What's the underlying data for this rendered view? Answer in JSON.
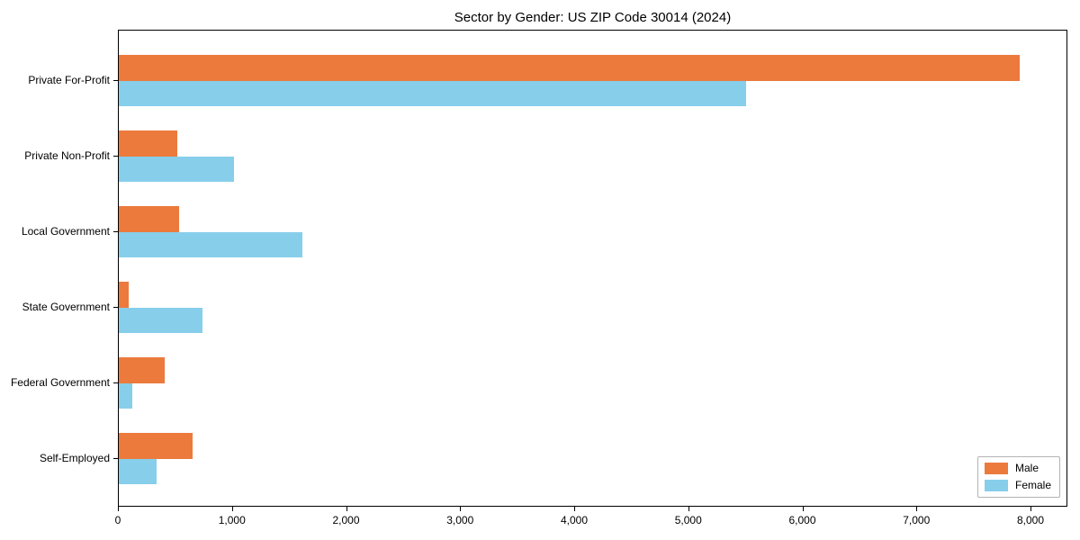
{
  "chart_data": {
    "type": "bar",
    "orientation": "horizontal",
    "title": "Sector by Gender: US ZIP Code 30014 (2024)",
    "categories": [
      "Private For-Profit",
      "Private Non-Profit",
      "Local Government",
      "State Government",
      "Federal Government",
      "Self-Employed"
    ],
    "series": [
      {
        "name": "Male",
        "color": "#EB7A3C",
        "values": [
          7900,
          510,
          530,
          90,
          400,
          650
        ]
      },
      {
        "name": "Female",
        "color": "#87CEEB",
        "values": [
          5500,
          1010,
          1610,
          730,
          120,
          330
        ]
      }
    ],
    "xlim": [
      0,
      8000
    ],
    "x_ticks": [
      0,
      1000,
      2000,
      3000,
      4000,
      5000,
      6000,
      7000,
      8000
    ],
    "x_tick_labels": [
      "0",
      "1,000",
      "2,000",
      "3,000",
      "4,000",
      "5,000",
      "6,000",
      "7,000",
      "8,000"
    ],
    "xlabel": "",
    "ylabel": "",
    "legend_position": "lower right",
    "grid": false,
    "colors": {
      "spine": "#000000",
      "legend_border": "#b3b3b3",
      "background": "#ffffff"
    }
  }
}
